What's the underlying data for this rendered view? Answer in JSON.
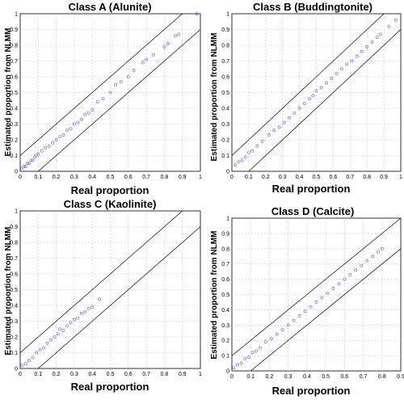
{
  "chart_data": [
    {
      "type": "scatter",
      "title": "Class A (Alunite)",
      "xlabel": "Real proportion",
      "ylabel": "Estimated proportion from NLMM",
      "xlim": [
        0,
        1
      ],
      "ylim": [
        0,
        1
      ],
      "xticks": [
        "0",
        "0.1",
        "0.2",
        "0.3",
        "0.4",
        "0.5",
        "0.6",
        "0.7",
        "0.8",
        "0.9",
        "1"
      ],
      "yticks": [
        "0",
        "0.1",
        "0.2",
        "0.3",
        "0.4",
        "0.5",
        "0.6",
        "0.7",
        "0.8",
        "0.9",
        "1"
      ],
      "grid": true,
      "band_offset": 0.1,
      "x": [
        0.01,
        0.02,
        0.03,
        0.04,
        0.05,
        0.06,
        0.07,
        0.08,
        0.09,
        0.1,
        0.12,
        0.14,
        0.16,
        0.18,
        0.2,
        0.22,
        0.24,
        0.26,
        0.28,
        0.3,
        0.32,
        0.34,
        0.36,
        0.38,
        0.4,
        0.43,
        0.46,
        0.5,
        0.53,
        0.56,
        0.6,
        0.63,
        0.68,
        0.7,
        0.74,
        0.8,
        0.82,
        0.86,
        0.88,
        0.98
      ],
      "y": [
        0.02,
        0.03,
        0.03,
        0.05,
        0.05,
        0.07,
        0.07,
        0.09,
        0.1,
        0.11,
        0.13,
        0.15,
        0.16,
        0.18,
        0.2,
        0.22,
        0.23,
        0.26,
        0.27,
        0.3,
        0.31,
        0.33,
        0.36,
        0.37,
        0.39,
        0.44,
        0.46,
        0.5,
        0.55,
        0.57,
        0.6,
        0.64,
        0.69,
        0.71,
        0.74,
        0.79,
        0.81,
        0.86,
        0.87,
        1.0
      ]
    },
    {
      "type": "scatter",
      "title": "Class B (Buddingtonite)",
      "xlabel": "Real proportion",
      "ylabel": "Estimated proportion from NLMM",
      "xlim": [
        0,
        1
      ],
      "ylim": [
        0,
        1
      ],
      "xticks": [
        "0",
        "0.1",
        "0.2",
        "0.3",
        "0.4",
        "0.5",
        "0.6",
        "0.7",
        "0.8",
        "0.9",
        "1"
      ],
      "yticks": [
        "0",
        "0.1",
        "0.2",
        "0.3",
        "0.4",
        "0.5",
        "0.6",
        "0.7",
        "0.8",
        "0.9",
        "1"
      ],
      "grid": true,
      "band_offset": 0.1,
      "x": [
        0.02,
        0.04,
        0.06,
        0.08,
        0.1,
        0.12,
        0.15,
        0.18,
        0.22,
        0.25,
        0.28,
        0.31,
        0.34,
        0.37,
        0.4,
        0.43,
        0.46,
        0.48,
        0.5,
        0.53,
        0.56,
        0.59,
        0.62,
        0.65,
        0.68,
        0.71,
        0.74,
        0.77,
        0.8,
        0.83,
        0.86,
        0.88,
        0.93,
        0.97
      ],
      "y": [
        0.04,
        0.06,
        0.07,
        0.09,
        0.12,
        0.13,
        0.16,
        0.19,
        0.23,
        0.26,
        0.28,
        0.31,
        0.34,
        0.37,
        0.4,
        0.43,
        0.46,
        0.48,
        0.51,
        0.53,
        0.56,
        0.59,
        0.62,
        0.65,
        0.68,
        0.7,
        0.73,
        0.76,
        0.79,
        0.82,
        0.85,
        0.87,
        0.92,
        0.96
      ]
    },
    {
      "type": "scatter",
      "title": "Class C (Kaolinite)",
      "xlabel": "Real proportion",
      "ylabel": "Estimated proportion from NLMM",
      "xlim": [
        0,
        1
      ],
      "ylim": [
        0,
        1
      ],
      "xticks": [
        "0",
        "0.1",
        "0.2",
        "0.3",
        "0.4",
        "0.5",
        "0.6",
        "0.7",
        "0.8",
        "0.9",
        "1"
      ],
      "yticks": [
        "0",
        "0.1",
        "0.2",
        "0.3",
        "0.4",
        "0.5",
        "0.6",
        "0.7",
        "0.8",
        "0.9",
        "1"
      ],
      "grid": true,
      "band_offset": 0.1,
      "x": [
        0.01,
        0.03,
        0.05,
        0.07,
        0.09,
        0.11,
        0.13,
        0.15,
        0.17,
        0.19,
        0.21,
        0.22,
        0.24,
        0.26,
        0.28,
        0.3,
        0.32,
        0.34,
        0.36,
        0.38,
        0.4,
        0.44
      ],
      "y": [
        0.02,
        0.03,
        0.05,
        0.07,
        0.1,
        0.12,
        0.13,
        0.16,
        0.18,
        0.2,
        0.22,
        0.25,
        0.24,
        0.27,
        0.29,
        0.31,
        0.32,
        0.35,
        0.36,
        0.38,
        0.39,
        0.44
      ]
    },
    {
      "type": "scatter",
      "title": "Class D (Calcite)",
      "xlabel": "Real proportion",
      "ylabel": "Estimated proportion from NLMM",
      "xlim": [
        0,
        0.9
      ],
      "ylim": [
        0,
        1
      ],
      "xticks": [
        "0",
        "0.1",
        "0.2",
        "0.3",
        "0.4",
        "0.5",
        "0.6",
        "0.7",
        "0.8",
        "0.9"
      ],
      "yticks": [
        "0",
        "0.1",
        "0.2",
        "0.3",
        "0.4",
        "0.5",
        "0.6",
        "0.7",
        "0.8",
        "0.9",
        "1"
      ],
      "grid": true,
      "band_offset": 0.1,
      "x": [
        0.01,
        0.03,
        0.05,
        0.07,
        0.09,
        0.11,
        0.13,
        0.15,
        0.18,
        0.21,
        0.24,
        0.27,
        0.3,
        0.33,
        0.36,
        0.39,
        0.42,
        0.45,
        0.48,
        0.51,
        0.54,
        0.57,
        0.6,
        0.63,
        0.66,
        0.69,
        0.72,
        0.75,
        0.78,
        0.8
      ],
      "y": [
        0.02,
        0.04,
        0.05,
        0.08,
        0.09,
        0.12,
        0.13,
        0.15,
        0.19,
        0.21,
        0.24,
        0.27,
        0.3,
        0.33,
        0.36,
        0.39,
        0.42,
        0.45,
        0.48,
        0.51,
        0.54,
        0.57,
        0.6,
        0.63,
        0.66,
        0.69,
        0.72,
        0.75,
        0.78,
        0.8
      ]
    }
  ]
}
